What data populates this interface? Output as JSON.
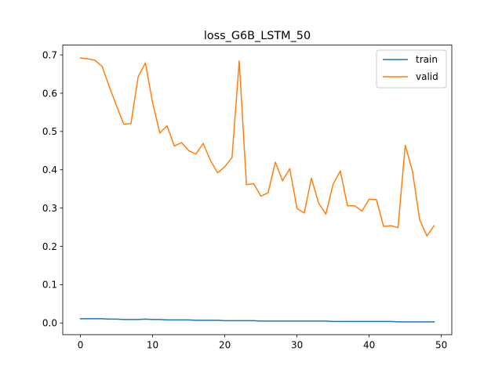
{
  "chart_data": {
    "type": "line",
    "title": "loss_G6B_LSTM_50",
    "xlabel": "",
    "ylabel": "",
    "xlim": [
      -2.45,
      51.45
    ],
    "ylim": [
      -0.0305,
      0.7255
    ],
    "xticks": [
      0,
      10,
      20,
      30,
      40,
      50
    ],
    "yticks": [
      0.0,
      0.1,
      0.2,
      0.3,
      0.4,
      0.5,
      0.6,
      0.7
    ],
    "xtick_labels": [
      "0",
      "10",
      "20",
      "30",
      "40",
      "50"
    ],
    "ytick_labels": [
      "0.0",
      "0.1",
      "0.2",
      "0.3",
      "0.4",
      "0.5",
      "0.6",
      "0.7"
    ],
    "grid": false,
    "legend_position": "upper right",
    "x": [
      0,
      1,
      2,
      3,
      4,
      5,
      6,
      7,
      8,
      9,
      10,
      11,
      12,
      13,
      14,
      15,
      16,
      17,
      18,
      19,
      20,
      21,
      22,
      23,
      24,
      25,
      26,
      27,
      28,
      29,
      30,
      31,
      32,
      33,
      34,
      35,
      36,
      37,
      38,
      39,
      40,
      41,
      42,
      43,
      44,
      45,
      46,
      47,
      48,
      49
    ],
    "series": [
      {
        "name": "train",
        "color": "#1f77b4",
        "values": [
          0.011,
          0.011,
          0.011,
          0.011,
          0.01,
          0.01,
          0.009,
          0.009,
          0.009,
          0.01,
          0.009,
          0.009,
          0.008,
          0.008,
          0.008,
          0.008,
          0.007,
          0.007,
          0.007,
          0.007,
          0.006,
          0.006,
          0.006,
          0.006,
          0.006,
          0.005,
          0.005,
          0.005,
          0.005,
          0.005,
          0.005,
          0.005,
          0.005,
          0.005,
          0.005,
          0.004,
          0.004,
          0.004,
          0.004,
          0.004,
          0.004,
          0.004,
          0.004,
          0.004,
          0.003,
          0.003,
          0.003,
          0.003,
          0.003,
          0.003
        ]
      },
      {
        "name": "valid",
        "color": "#ff7f0e",
        "values": [
          0.692,
          0.69,
          0.686,
          0.67,
          0.617,
          0.567,
          0.519,
          0.521,
          0.643,
          0.679,
          0.575,
          0.496,
          0.515,
          0.462,
          0.471,
          0.45,
          0.441,
          0.469,
          0.425,
          0.392,
          0.408,
          0.432,
          0.684,
          0.361,
          0.364,
          0.331,
          0.34,
          0.42,
          0.371,
          0.403,
          0.299,
          0.287,
          0.378,
          0.313,
          0.284,
          0.362,
          0.397,
          0.306,
          0.306,
          0.292,
          0.323,
          0.322,
          0.252,
          0.254,
          0.249,
          0.464,
          0.396,
          0.27,
          0.227,
          0.254
        ]
      }
    ]
  }
}
